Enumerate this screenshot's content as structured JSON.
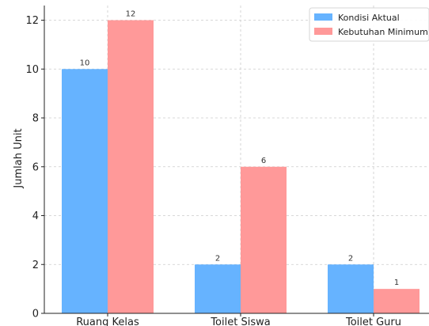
{
  "chart_data": {
    "type": "bar",
    "title": "",
    "xlabel": "",
    "ylabel": "Jumlah Unit",
    "categories": [
      "Ruang Kelas",
      "Toilet Siswa",
      "Toilet Guru"
    ],
    "series": [
      {
        "name": "Kondisi Aktual",
        "values": [
          10,
          2,
          2
        ],
        "color": "#66b3ff"
      },
      {
        "name": "Kebutuhan Minimum",
        "values": [
          12,
          6,
          1
        ],
        "color": "#ff9999"
      }
    ],
    "ylim": [
      0,
      12.6
    ],
    "yticks": [
      0,
      2,
      4,
      6,
      8,
      10,
      12
    ],
    "grid": true,
    "legend_position": "top-right",
    "data_labels": true
  }
}
